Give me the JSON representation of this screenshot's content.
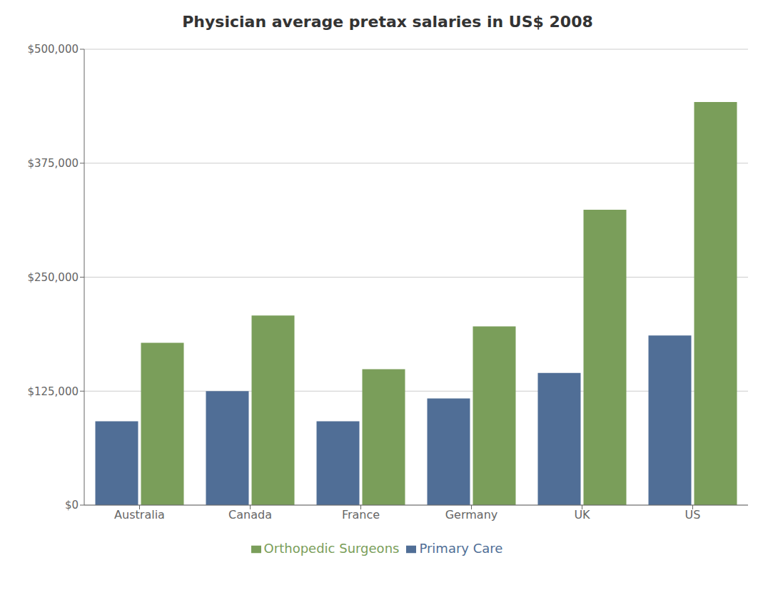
{
  "chart_data": {
    "type": "bar",
    "title": "Physician average pretax salaries in US$ 2008",
    "categories": [
      "Australia",
      "Canada",
      "France",
      "Germany",
      "UK",
      "US"
    ],
    "series": [
      {
        "name": "Primary Care",
        "color": "#506e96",
        "values": [
          92000,
          125000,
          92000,
          117000,
          145000,
          186000
        ]
      },
      {
        "name": "Orthopedic Surgeons",
        "color": "#7a9e5a",
        "values": [
          178000,
          208000,
          149000,
          196000,
          324000,
          442000
        ]
      }
    ],
    "ylim": [
      0,
      500000
    ],
    "yticks": [
      {
        "value": 0,
        "label": "$0"
      },
      {
        "value": 125000,
        "label": "$125,000"
      },
      {
        "value": 250000,
        "label": "$250,000"
      },
      {
        "value": 375000,
        "label": "$375,000"
      },
      {
        "value": 500000,
        "label": "$500,000"
      }
    ],
    "grid": true,
    "legend": "bottom"
  }
}
